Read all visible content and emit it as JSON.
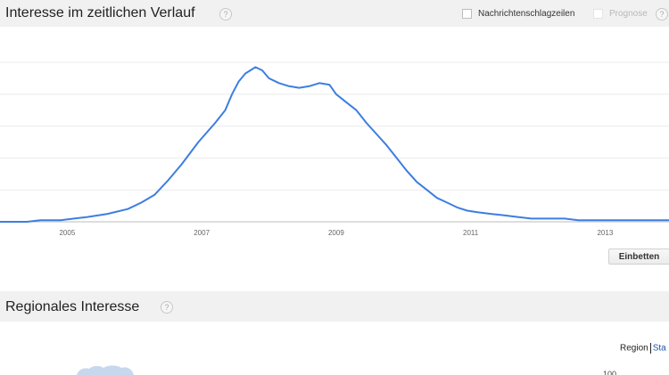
{
  "interest_section": {
    "title": "Interesse im zeitlichen Verlauf",
    "help": "?",
    "news_headlines_label": "Nachrichtenschlagzeilen",
    "forecast_label": "Prognose",
    "forecast_help": "?",
    "embed_label": "Einbetten"
  },
  "regional_section": {
    "title": "Regionales Interesse",
    "help": "?",
    "region_tab": "Region",
    "city_tab": "Sta",
    "row_label_partial": "...",
    "row_value_partial": "100"
  },
  "colors": {
    "line": "#3d7ee0",
    "grid": "#ebebeb",
    "header_bg": "#f1f1f1"
  },
  "chart_data": {
    "type": "line",
    "title": "",
    "xlabel": "",
    "ylabel": "",
    "x_ticks": [
      "2005",
      "2007",
      "2009",
      "2011",
      "2013"
    ],
    "xlim": [
      2004.0,
      2013.95
    ],
    "ylim": [
      0,
      100
    ],
    "grid": true,
    "series": [
      {
        "values": [
          [
            2004.0,
            0
          ],
          [
            2004.4,
            0
          ],
          [
            2004.6,
            1
          ],
          [
            2004.9,
            1
          ],
          [
            2005.1,
            2
          ],
          [
            2005.3,
            3
          ],
          [
            2005.6,
            5
          ],
          [
            2005.9,
            8
          ],
          [
            2006.1,
            12
          ],
          [
            2006.3,
            17
          ],
          [
            2006.5,
            26
          ],
          [
            2006.7,
            36
          ],
          [
            2006.95,
            50
          ],
          [
            2007.2,
            62
          ],
          [
            2007.35,
            70
          ],
          [
            2007.45,
            80
          ],
          [
            2007.55,
            88
          ],
          [
            2007.65,
            93
          ],
          [
            2007.8,
            97
          ],
          [
            2007.9,
            95
          ],
          [
            2008.0,
            90
          ],
          [
            2008.15,
            87
          ],
          [
            2008.3,
            85
          ],
          [
            2008.45,
            84
          ],
          [
            2008.6,
            85
          ],
          [
            2008.75,
            87
          ],
          [
            2008.9,
            86
          ],
          [
            2009.0,
            80
          ],
          [
            2009.15,
            75
          ],
          [
            2009.3,
            70
          ],
          [
            2009.45,
            62
          ],
          [
            2009.6,
            55
          ],
          [
            2009.75,
            48
          ],
          [
            2009.9,
            40
          ],
          [
            2010.05,
            32
          ],
          [
            2010.2,
            25
          ],
          [
            2010.35,
            20
          ],
          [
            2010.5,
            15
          ],
          [
            2010.65,
            12
          ],
          [
            2010.8,
            9
          ],
          [
            2010.95,
            7
          ],
          [
            2011.1,
            6
          ],
          [
            2011.3,
            5
          ],
          [
            2011.5,
            4
          ],
          [
            2011.7,
            3
          ],
          [
            2011.9,
            2
          ],
          [
            2012.1,
            2
          ],
          [
            2012.4,
            2
          ],
          [
            2012.6,
            1
          ],
          [
            2012.9,
            1
          ],
          [
            2013.2,
            1
          ],
          [
            2013.5,
            1
          ],
          [
            2013.95,
            1
          ]
        ]
      }
    ]
  }
}
